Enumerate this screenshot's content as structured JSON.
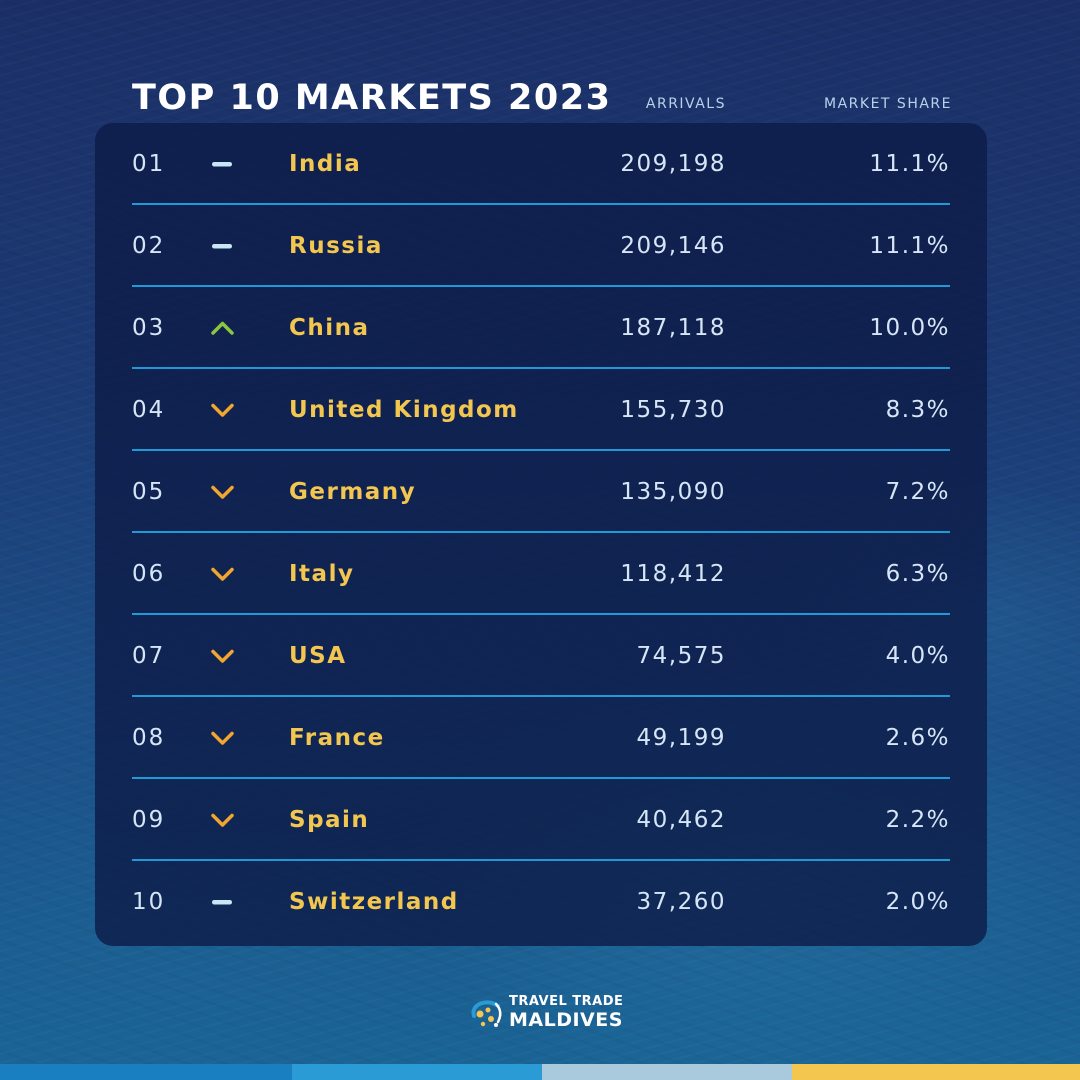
{
  "title": "TOP 10 MARKETS 2023",
  "columns": {
    "arrivals": "ARRIVALS",
    "market_share": "MARKET SHARE"
  },
  "rows": [
    {
      "rank": "01",
      "trend": "none",
      "country": "India",
      "arrivals": "209,198",
      "share": "11.1%"
    },
    {
      "rank": "02",
      "trend": "none",
      "country": "Russia",
      "arrivals": "209,146",
      "share": "11.1%"
    },
    {
      "rank": "03",
      "trend": "up",
      "country": "China",
      "arrivals": "187,118",
      "share": "10.0%"
    },
    {
      "rank": "04",
      "trend": "down",
      "country": "United Kingdom",
      "arrivals": "155,730",
      "share": "8.3%"
    },
    {
      "rank": "05",
      "trend": "down",
      "country": "Germany",
      "arrivals": "135,090",
      "share": "7.2%"
    },
    {
      "rank": "06",
      "trend": "down",
      "country": "Italy",
      "arrivals": "118,412",
      "share": "6.3%"
    },
    {
      "rank": "07",
      "trend": "down",
      "country": "USA",
      "arrivals": "74,575",
      "share": "4.0%"
    },
    {
      "rank": "08",
      "trend": "down",
      "country": "France",
      "arrivals": "49,199",
      "share": "2.6%"
    },
    {
      "rank": "09",
      "trend": "down",
      "country": "Spain",
      "arrivals": "40,462",
      "share": "2.2%"
    },
    {
      "rank": "10",
      "trend": "none",
      "country": "Switzerland",
      "arrivals": "37,260",
      "share": "2.0%"
    }
  ],
  "trend_icons": {
    "none": "dash-icon",
    "up": "chevron-up-icon",
    "down": "chevron-down-icon"
  },
  "colors": {
    "trend_none": "#c9e6f7",
    "trend_up": "#8cc63f",
    "trend_down": "#f2a62e",
    "country": "#f3c64f",
    "divider": "#1f9ad6",
    "stripes": [
      "#1a7fc1",
      "#2a9bd4",
      "#a9c9dc",
      "#f3c64f"
    ]
  },
  "logo": {
    "line1": "TRAVEL TRADE",
    "line2": "MALDIVES"
  }
}
